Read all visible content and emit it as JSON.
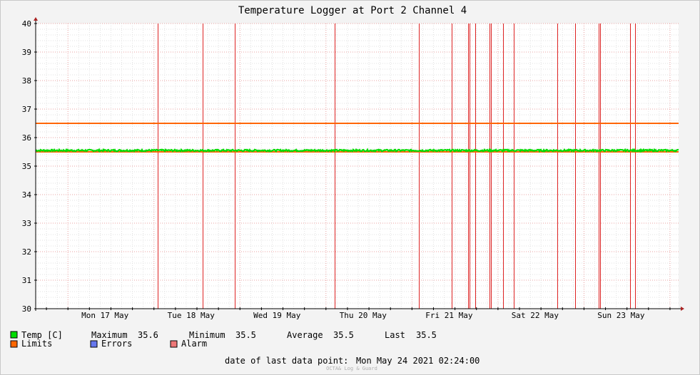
{
  "chart_data": {
    "type": "line",
    "title": "Temperature Logger at Port 2 Channel 4",
    "ylim": [
      30,
      40
    ],
    "y_ticks": [
      30,
      31,
      32,
      33,
      34,
      35,
      36,
      37,
      38,
      39,
      40
    ],
    "x_range": [
      "2021-05-16 15:00",
      "2021-05-24 02:24"
    ],
    "x_tick_labels": [
      {
        "label": "Mon 17 May",
        "at": "2021-05-17 00:00"
      },
      {
        "label": "Tue 18 May",
        "at": "2021-05-18 00:00"
      },
      {
        "label": "Wed 19 May",
        "at": "2021-05-19 00:00"
      },
      {
        "label": "Thu 20 May",
        "at": "2021-05-20 00:00"
      },
      {
        "label": "Fri 21 May",
        "at": "2021-05-21 00:00"
      },
      {
        "label": "Sat 22 May",
        "at": "2021-05-22 00:00"
      },
      {
        "label": "Sun 23 May",
        "at": "2021-05-23 00:00"
      }
    ],
    "grid": true,
    "series": [
      {
        "name": "Temp [C]",
        "color": "#00dd00",
        "level": 35.55,
        "min": 35.5,
        "max": 35.6
      }
    ],
    "limits": {
      "name": "Limits",
      "color": "#ff6600",
      "upper": 36.5,
      "lower": 35.5
    },
    "errors": {
      "name": "Errors",
      "color": "#6677ee"
    },
    "alarms": {
      "name": "Alarm",
      "color": "#dd2222",
      "events": [
        "2021-05-18 01:00",
        "2021-05-18 13:30",
        "2021-05-18 22:30",
        "2021-05-20 02:30",
        "2021-05-21 02:00",
        "2021-05-21 11:00",
        "2021-05-21 15:40",
        "2021-05-21 16:00",
        "2021-05-21 17:40",
        "2021-05-21 21:40",
        "2021-05-21 22:00",
        "2021-05-22 01:30",
        "2021-05-22 04:30",
        "2021-05-22 16:30",
        "2021-05-22 21:30",
        "2021-05-23 04:10",
        "2021-05-23 04:30",
        "2021-05-23 12:50",
        "2021-05-23 14:10"
      ]
    }
  },
  "legend": {
    "stats": [
      {
        "label": "Maximum",
        "value": "35.6"
      },
      {
        "label": "Minimum",
        "value": "35.5"
      },
      {
        "label": "Average",
        "value": "35.5"
      },
      {
        "label": "Last",
        "value": "35.5"
      }
    ]
  },
  "footer": {
    "last_point_label": "date of last data point:",
    "last_point_value": "Mon May 24 2021 02:24:00",
    "watermark": "OCTA& Log & Guard"
  }
}
